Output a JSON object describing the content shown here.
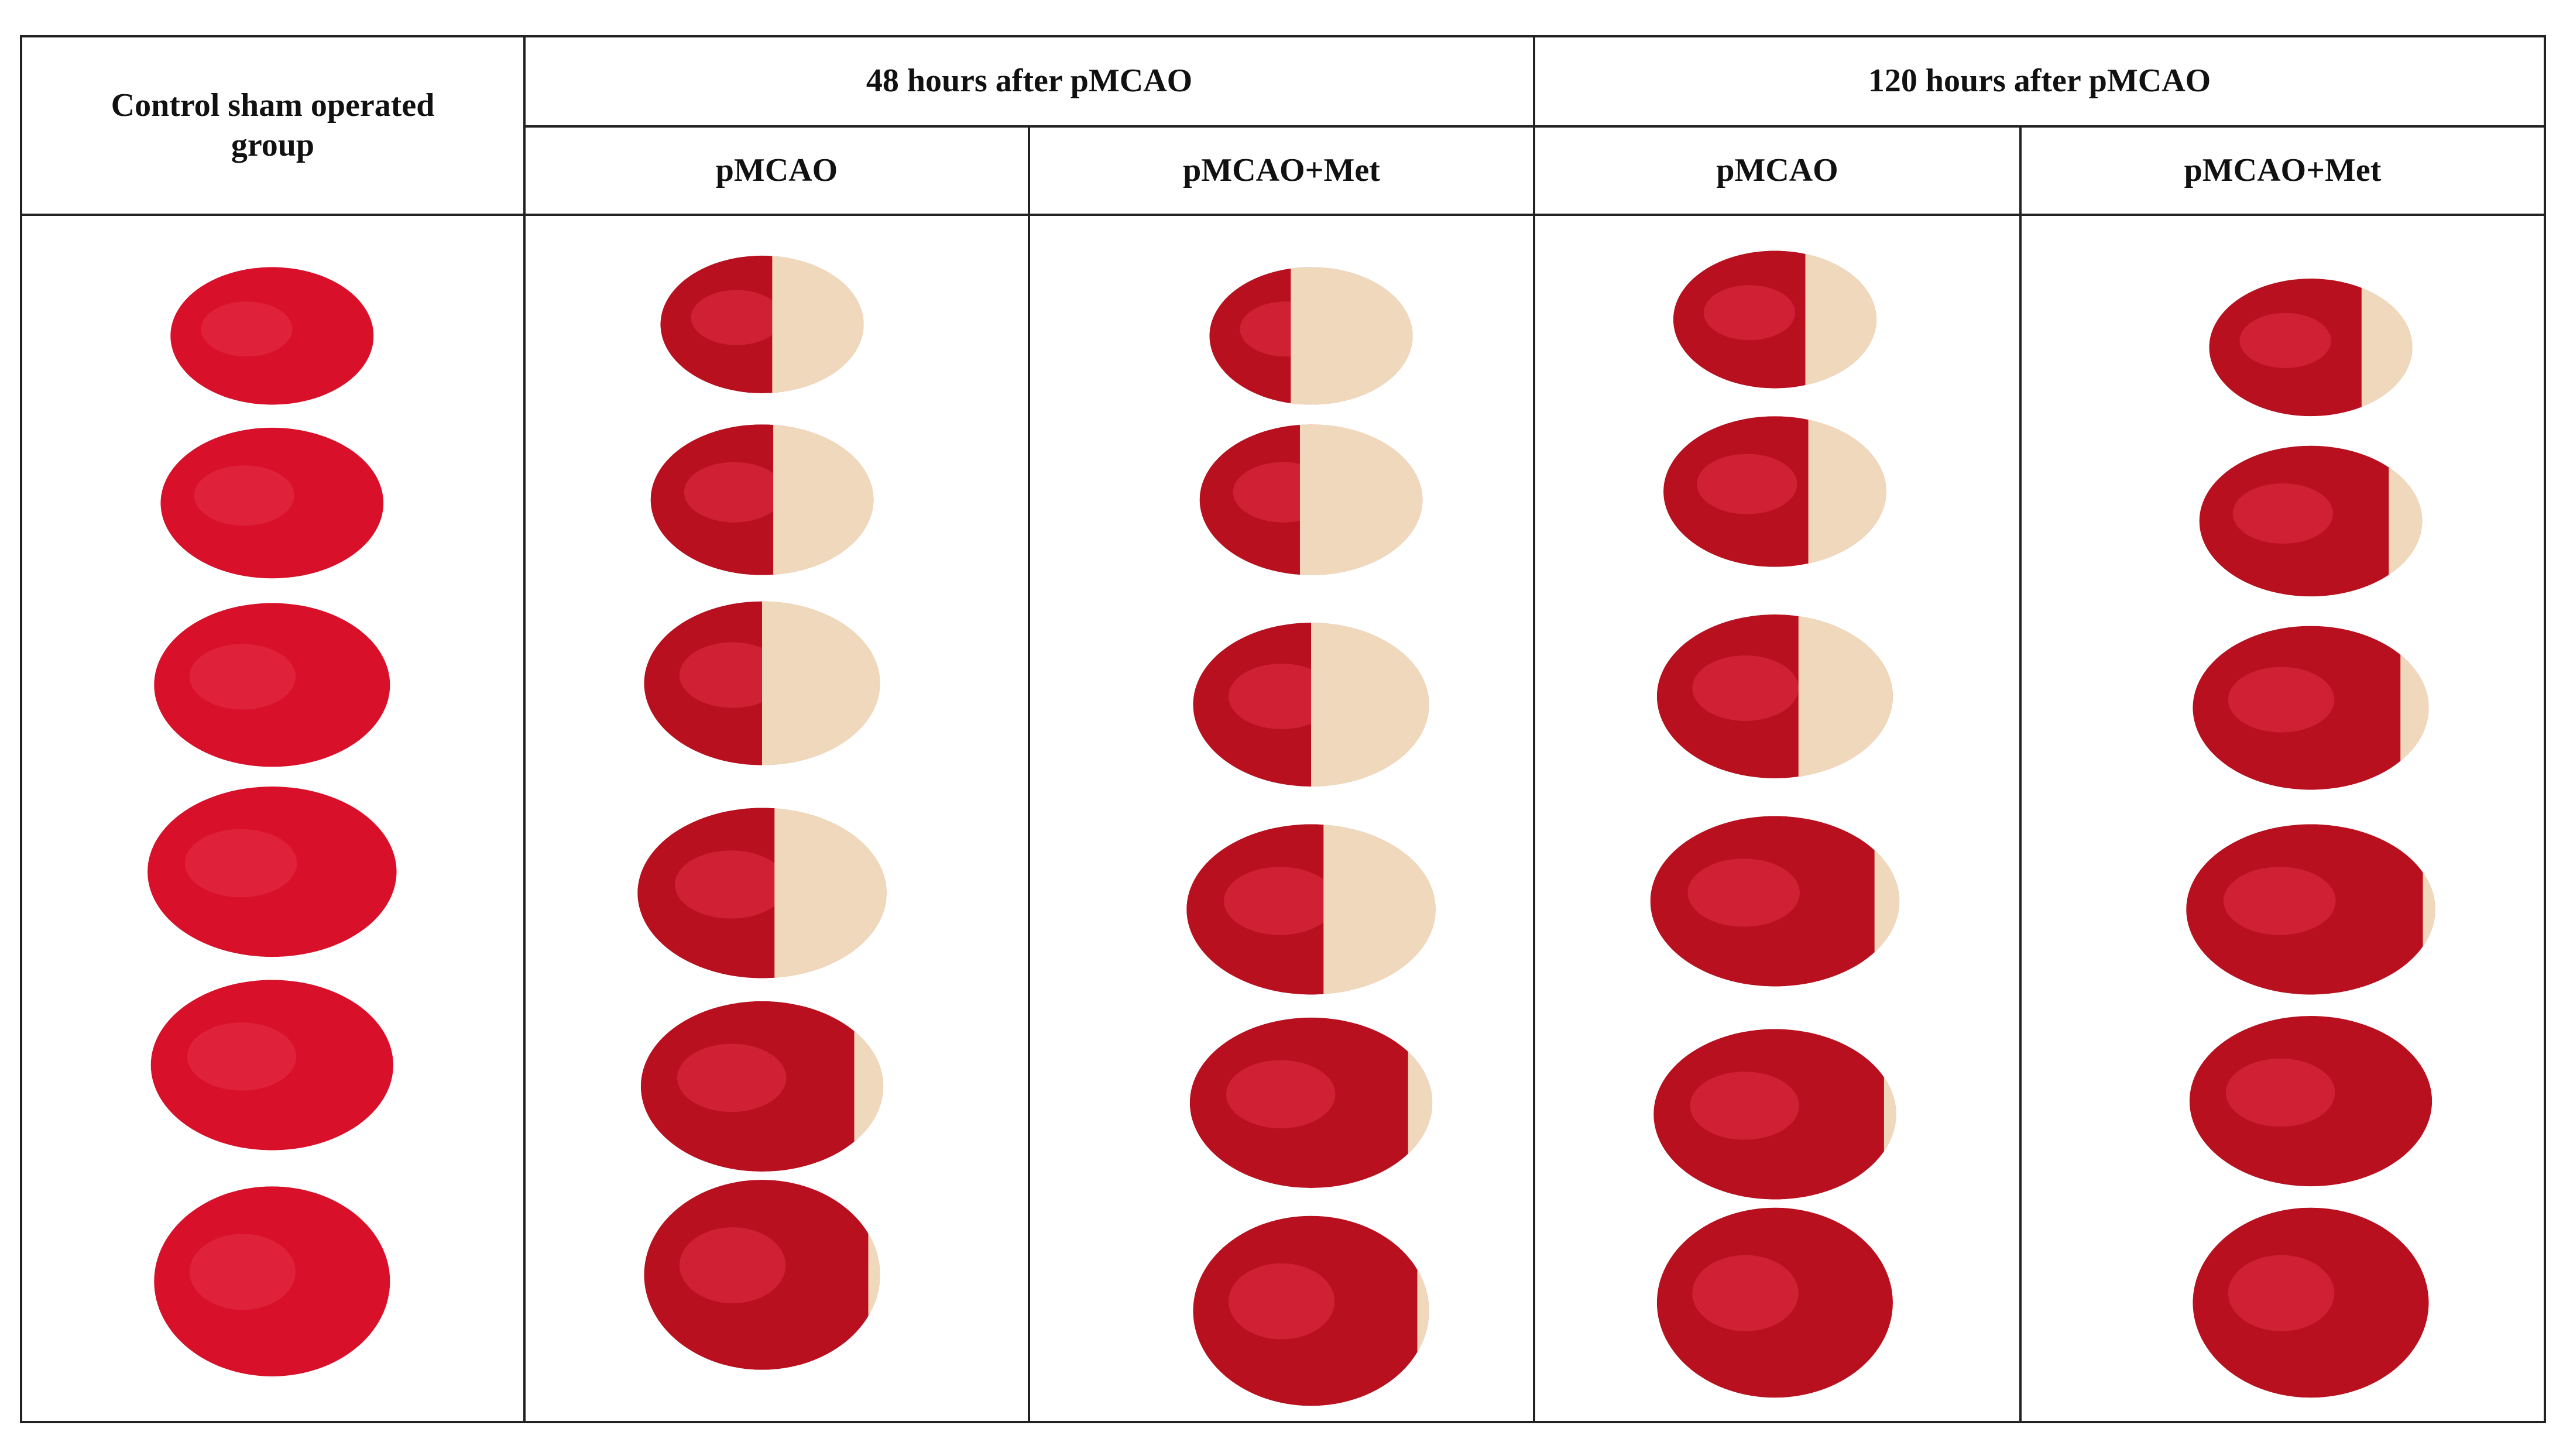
{
  "header": {
    "control": "Control sham operated group",
    "groups": [
      "48 hours after pMCAO",
      "120 hours after pMCAO"
    ],
    "subgroups": [
      "pMCAO",
      "pMCAO+Met",
      "pMCAO",
      "pMCAO+Met"
    ]
  }
}
